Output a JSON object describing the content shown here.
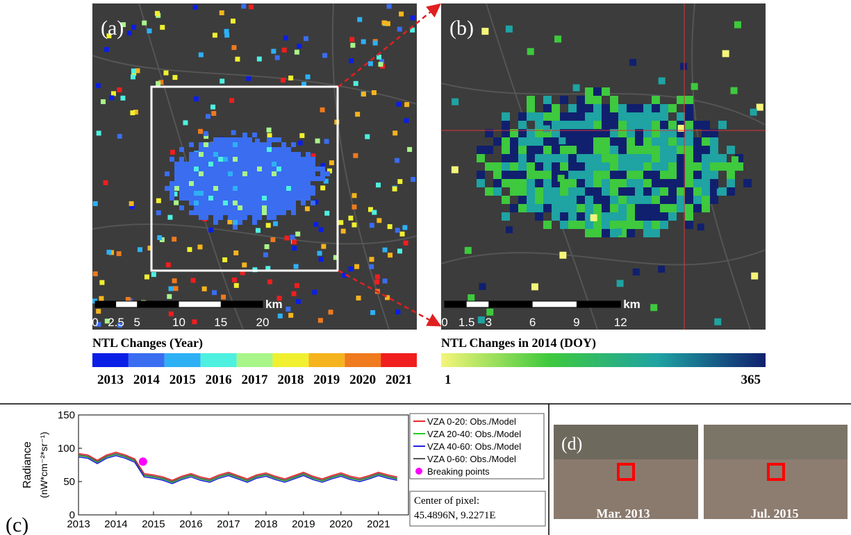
{
  "panel_a": {
    "label": "(a)",
    "scale_ticks": [
      0,
      2.5,
      5,
      10,
      15,
      20
    ],
    "scale_unit": "km"
  },
  "panel_b": {
    "label": "(b)",
    "scale_ticks": [
      0,
      1.5,
      3,
      6,
      9,
      12
    ],
    "scale_unit": "km"
  },
  "colorbar_a": {
    "title": "NTL Changes (Year)",
    "categories": [
      "2013",
      "2014",
      "2015",
      "2016",
      "2017",
      "2018",
      "2019",
      "2020",
      "2021"
    ],
    "colors": [
      "#0a1ee6",
      "#3a6df0",
      "#2eb0f5",
      "#4ef0e0",
      "#a8f58a",
      "#f0f030",
      "#f5b41e",
      "#f07a1e",
      "#f01e1e"
    ]
  },
  "colorbar_b": {
    "title": "NTL Changes in 2014 (DOY)",
    "ticks": [
      1,
      365
    ],
    "colors": [
      "#f5f57a",
      "#3ec93e",
      "#1fa3a3",
      "#10206e"
    ]
  },
  "chart_data": {
    "type": "line",
    "label": "(c)",
    "ylabel": "Radiance",
    "ylabel_units": "(nW*cm⁻²*sr⁻¹)",
    "x": [
      2013,
      2013.25,
      2013.5,
      2013.75,
      2014,
      2014.25,
      2014.5,
      2014.75,
      2015,
      2015.25,
      2015.5,
      2015.75,
      2016,
      2016.25,
      2016.5,
      2016.75,
      2017,
      2017.25,
      2017.5,
      2017.75,
      2018,
      2018.25,
      2018.5,
      2018.75,
      2019,
      2019.25,
      2019.5,
      2019.75,
      2020,
      2020.25,
      2020.5,
      2020.75,
      2021,
      2021.25,
      2021.5
    ],
    "series": [
      {
        "name": "VZA 0-20: Obs./Model",
        "color": "#e8282d",
        "values": [
          92,
          90,
          82,
          90,
          94,
          90,
          84,
          62,
          60,
          57,
          52,
          58,
          62,
          57,
          54,
          60,
          64,
          59,
          54,
          60,
          63,
          58,
          54,
          59,
          64,
          58,
          54,
          59,
          63,
          58,
          55,
          59,
          64,
          60,
          57
        ]
      },
      {
        "name": "VZA 20-40: Obs./Model",
        "color": "#22cc22",
        "values": [
          89,
          87,
          79,
          87,
          91,
          87,
          81,
          59,
          57,
          54,
          49,
          55,
          59,
          54,
          51,
          57,
          61,
          56,
          51,
          57,
          60,
          55,
          51,
          56,
          61,
          55,
          51,
          56,
          60,
          55,
          52,
          56,
          61,
          57,
          54
        ]
      },
      {
        "name": "VZA 40-60: Obs./Model",
        "color": "#2222dd",
        "values": [
          87,
          85,
          77,
          85,
          89,
          85,
          79,
          57,
          55,
          52,
          47,
          53,
          57,
          52,
          49,
          55,
          59,
          54,
          49,
          55,
          58,
          53,
          49,
          54,
          59,
          53,
          49,
          54,
          58,
          53,
          50,
          54,
          59,
          55,
          52
        ]
      },
      {
        "name": "VZA 0-60: Obs./Model",
        "color": "#555555",
        "values": [
          90,
          88,
          80,
          88,
          92,
          88,
          82,
          60,
          58,
          55,
          50,
          56,
          60,
          55,
          52,
          58,
          62,
          57,
          52,
          58,
          61,
          56,
          52,
          57,
          62,
          56,
          52,
          57,
          61,
          56,
          53,
          57,
          62,
          58,
          55
        ]
      }
    ],
    "breaks": {
      "name": "Breaking points",
      "color": "#ff00ff",
      "x": [
        2014.72
      ],
      "values": [
        80
      ]
    },
    "xlim": [
      2013,
      2021.8
    ],
    "xticks": [
      2013,
      2014,
      2015,
      2016,
      2017,
      2018,
      2019,
      2020,
      2021
    ],
    "ylim": [
      0,
      150
    ],
    "yticks": [
      0,
      50,
      100,
      150
    ],
    "annotation": [
      "Center of pixel:",
      "45.4896N, 9.2271E"
    ]
  },
  "panel_d": {
    "label": "(d)",
    "captions": [
      "Mar. 2013",
      "Jul. 2015"
    ]
  }
}
